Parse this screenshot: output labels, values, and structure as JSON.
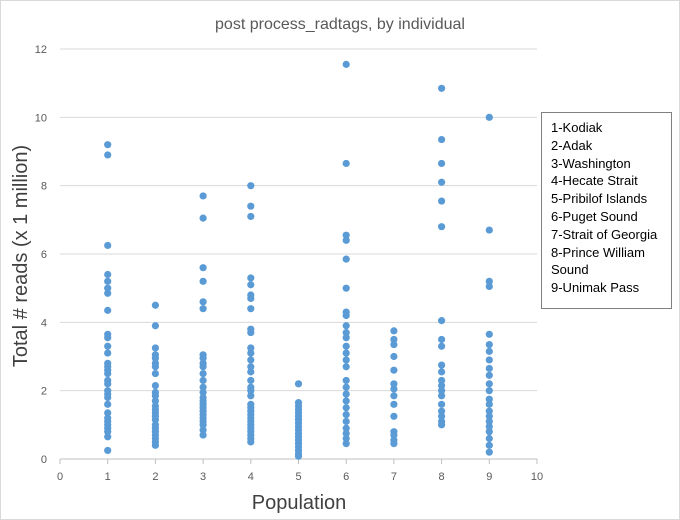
{
  "chart_data": {
    "type": "scatter",
    "title": "post process_radtags, by individual",
    "xlabel": "Population",
    "ylabel": "Total # reads (x 1 million)",
    "xlim": [
      0,
      10
    ],
    "ylim": [
      0,
      12
    ],
    "x_ticks": [
      0,
      1,
      2,
      3,
      4,
      5,
      6,
      7,
      8,
      9,
      10
    ],
    "y_ticks": [
      0,
      2,
      4,
      6,
      8,
      10,
      12
    ],
    "grid": "horizontal",
    "legend_position": "right",
    "marker_color": "#5B9BD5",
    "legend_entries": [
      "1-Kodiak",
      "2-Adak",
      "3-Washington",
      "4-Hecate Strait",
      "5-Pribilof Islands",
      "6-Puget Sound",
      "7-Strait of Georgia",
      "8-Prince William Sound",
      "9-Unimak Pass"
    ],
    "series": [
      {
        "x": 1,
        "values": [
          9.2,
          8.9,
          6.25,
          5.4,
          5.2,
          5.0,
          4.85,
          4.35,
          3.65,
          3.55,
          3.3,
          3.1,
          2.8,
          2.7,
          2.6,
          2.5,
          2.3,
          2.2,
          2.0,
          1.9,
          1.8,
          1.6,
          1.35,
          1.2,
          1.1,
          1.0,
          0.9,
          0.8,
          0.65,
          0.25
        ]
      },
      {
        "x": 2,
        "values": [
          4.5,
          3.9,
          3.25,
          3.05,
          2.95,
          2.8,
          2.7,
          2.5,
          2.15,
          1.95,
          1.85,
          1.7,
          1.55,
          1.45,
          1.35,
          1.25,
          1.15,
          1.0,
          0.9,
          0.8,
          0.7,
          0.6,
          0.5,
          0.4
        ]
      },
      {
        "x": 3,
        "values": [
          7.7,
          7.05,
          5.6,
          5.2,
          4.6,
          4.4,
          3.05,
          2.95,
          2.8,
          2.7,
          2.5,
          2.3,
          2.1,
          1.95,
          1.8,
          1.7,
          1.6,
          1.5,
          1.4,
          1.3,
          1.2,
          1.1,
          1.0,
          0.85,
          0.7
        ]
      },
      {
        "x": 4,
        "values": [
          8.0,
          7.4,
          7.1,
          5.3,
          5.1,
          4.8,
          4.7,
          4.4,
          3.8,
          3.7,
          3.25,
          3.1,
          2.9,
          2.7,
          2.55,
          2.3,
          2.1,
          2.0,
          1.85,
          1.6,
          1.5,
          1.4,
          1.3,
          1.2,
          1.1,
          1.0,
          0.9,
          0.8,
          0.7,
          0.6,
          0.5
        ]
      },
      {
        "x": 5,
        "values": [
          2.2,
          1.65,
          1.55,
          1.45,
          1.35,
          1.25,
          1.15,
          1.05,
          0.95,
          0.85,
          0.75,
          0.65,
          0.55,
          0.45,
          0.35,
          0.25,
          0.15,
          0.08
        ]
      },
      {
        "x": 6,
        "values": [
          11.55,
          8.65,
          6.55,
          6.4,
          5.85,
          5.0,
          4.3,
          4.2,
          3.9,
          3.7,
          3.55,
          3.3,
          3.1,
          2.9,
          2.7,
          2.3,
          2.1,
          1.9,
          1.7,
          1.5,
          1.3,
          1.1,
          0.9,
          0.75,
          0.6,
          0.45
        ]
      },
      {
        "x": 7,
        "values": [
          3.75,
          3.5,
          3.35,
          3.0,
          2.6,
          2.2,
          2.05,
          1.85,
          1.6,
          1.25,
          0.8,
          0.7,
          0.55,
          0.45
        ]
      },
      {
        "x": 8,
        "values": [
          10.85,
          9.35,
          8.65,
          8.1,
          7.55,
          6.8,
          4.05,
          3.5,
          3.3,
          2.75,
          2.55,
          2.3,
          2.15,
          2.0,
          1.85,
          1.6,
          1.4,
          1.25,
          1.1,
          1.0
        ]
      },
      {
        "x": 9,
        "values": [
          10.0,
          6.7,
          5.2,
          5.05,
          3.65,
          3.35,
          3.15,
          2.9,
          2.65,
          2.45,
          2.2,
          2.0,
          1.75,
          1.6,
          1.4,
          1.25,
          1.1,
          0.95,
          0.8,
          0.6,
          0.4,
          0.2
        ]
      }
    ]
  }
}
